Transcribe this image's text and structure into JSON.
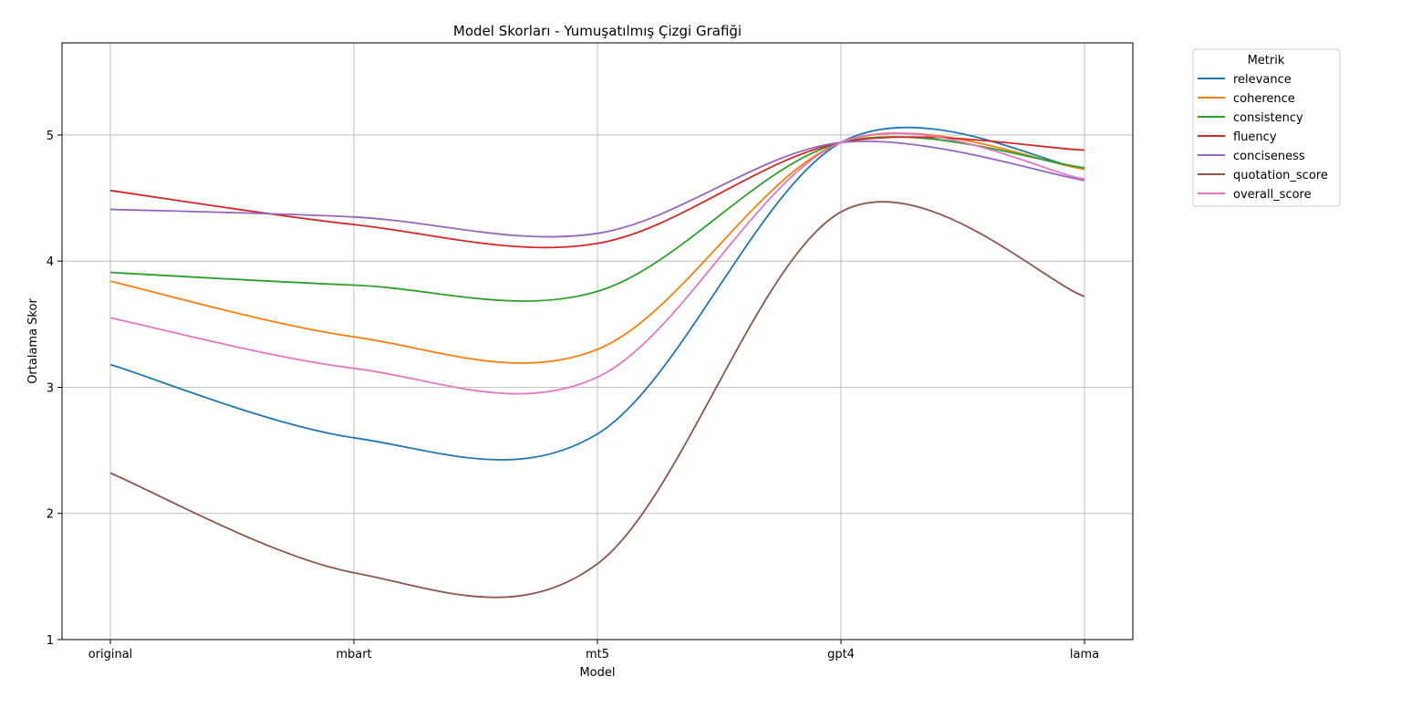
{
  "chart_data": {
    "type": "line",
    "title": "Model Skorları - Yumuşatılmış Çizgi Grafiği",
    "xlabel": "Model",
    "ylabel": "Ortalama Skor",
    "categories": [
      "original",
      "mbart",
      "mt5",
      "gpt4",
      "lama"
    ],
    "ylim": [
      1,
      5.73
    ],
    "yticks": [
      1,
      2,
      3,
      4,
      5
    ],
    "grid": true,
    "smoothed": true,
    "legend": {
      "title": "Metrik",
      "placement": "outside-top-right"
    },
    "series": [
      {
        "name": "relevance",
        "color": "#1f77b4",
        "values": [
          3.18,
          2.6,
          2.63,
          4.94,
          4.73
        ]
      },
      {
        "name": "coherence",
        "color": "#ff7f0e",
        "values": [
          3.84,
          3.4,
          3.3,
          4.94,
          4.73
        ]
      },
      {
        "name": "consistency",
        "color": "#2ca02c",
        "values": [
          3.91,
          3.81,
          3.76,
          4.94,
          4.74
        ]
      },
      {
        "name": "fluency",
        "color": "#d62728",
        "values": [
          4.56,
          4.29,
          4.14,
          4.94,
          4.88
        ]
      },
      {
        "name": "conciseness",
        "color": "#9467bd",
        "values": [
          4.41,
          4.35,
          4.22,
          4.94,
          4.64
        ]
      },
      {
        "name": "quotation_score",
        "color": "#8c564b",
        "values": [
          2.32,
          1.53,
          1.6,
          4.39,
          3.72
        ]
      },
      {
        "name": "overall_score",
        "color": "#e377c2",
        "values": [
          3.55,
          3.15,
          3.08,
          4.94,
          4.65
        ]
      }
    ]
  }
}
